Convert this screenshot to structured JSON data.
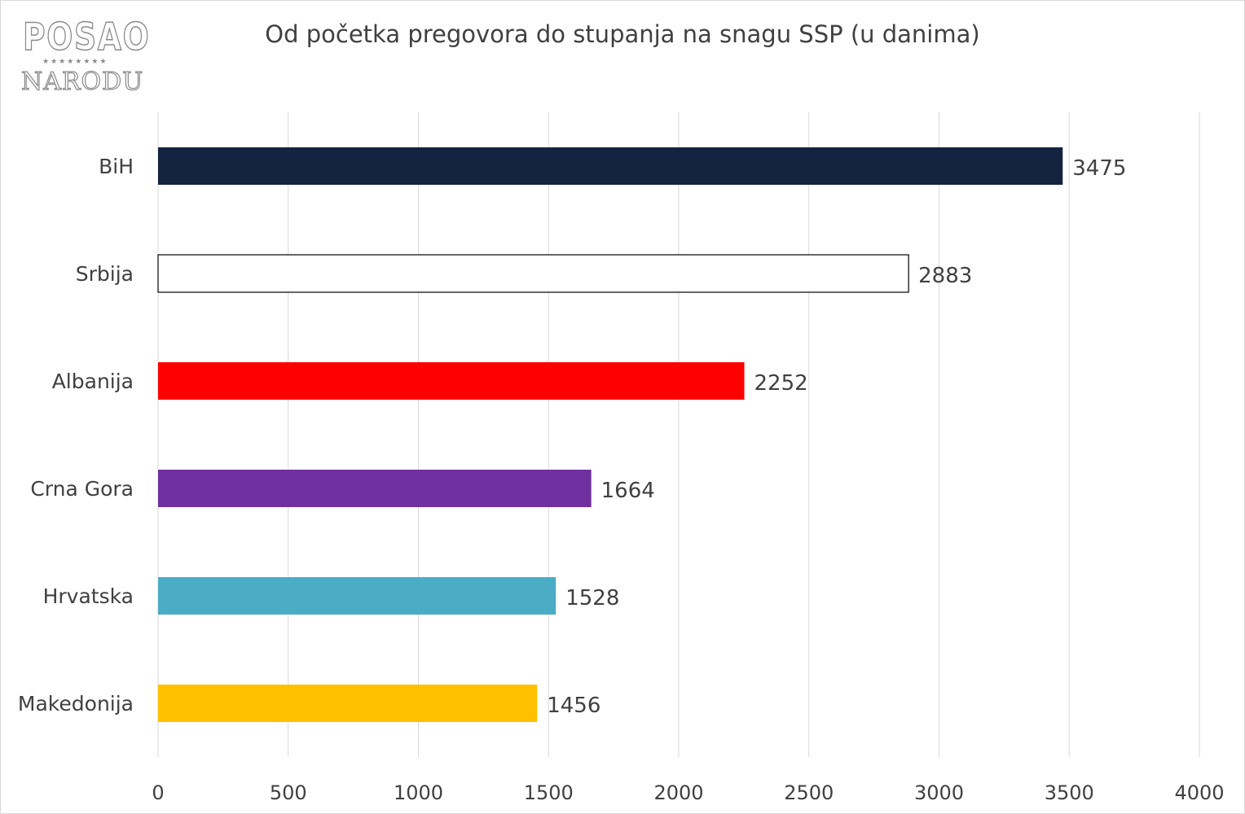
{
  "logo": {
    "line1": "POSAO",
    "line2": "NARODU"
  },
  "chart_data": {
    "type": "bar",
    "orientation": "horizontal",
    "title": "Od početka pregovora do stupanja na snagu SSP (u danima)",
    "categories": [
      "BiH",
      "Srbija",
      "Albanija",
      "Crna Gora",
      "Hrvatska",
      "Makedonija"
    ],
    "values": [
      3475,
      2883,
      2252,
      1664,
      1528,
      1456
    ],
    "colors": [
      "#14233f",
      "#ffffff",
      "#ff0000",
      "#7030a0",
      "#4bacc6",
      "#ffc000"
    ],
    "xlim": [
      0,
      4000
    ],
    "xticks": [
      0,
      500,
      1000,
      1500,
      2000,
      2500,
      3000,
      3500,
      4000
    ],
    "grid": "vertical",
    "data_labels": true,
    "legend": "none"
  }
}
